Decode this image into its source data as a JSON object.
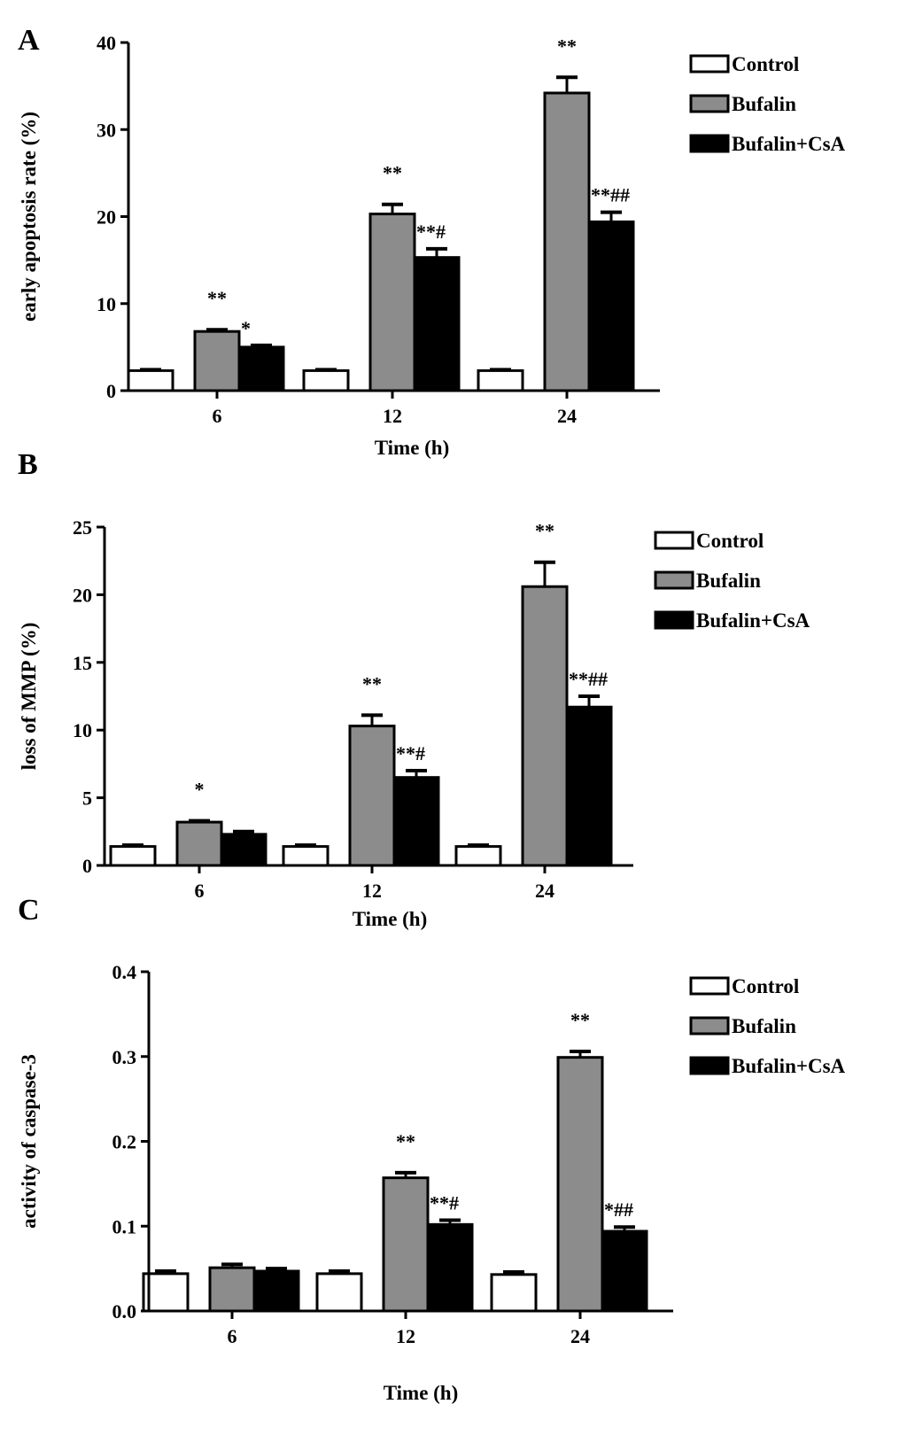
{
  "colors": {
    "Control": "#ffffff",
    "Bufalin": "#8c8c8c",
    "Bufalin+CsA": "#000000"
  },
  "chart_data": [
    {
      "type": "bar",
      "panel_label": "A",
      "title": "",
      "xlabel": "Time (h)",
      "ylabel": "early apoptosis rate (%)",
      "categories": [
        "6",
        "12",
        "24"
      ],
      "ylim": [
        0,
        40
      ],
      "yticks": [
        "0",
        "10",
        "20",
        "30",
        "40"
      ],
      "legend_position": "top-right",
      "series": [
        {
          "name": "Control",
          "values": [
            2.3,
            2.3,
            2.3
          ],
          "errors": [
            0.1,
            0.1,
            0.1
          ],
          "annotations": [
            "",
            "",
            ""
          ]
        },
        {
          "name": "Bufalin",
          "values": [
            6.8,
            20.3,
            34.2
          ],
          "errors": [
            0.2,
            1.1,
            1.8
          ],
          "annotations": [
            "**",
            "**",
            "**"
          ]
        },
        {
          "name": "Bufalin+CsA",
          "values": [
            5.0,
            15.3,
            19.4
          ],
          "errors": [
            0.2,
            1.0,
            1.1
          ],
          "annotations": [
            "*",
            "**#",
            "**##"
          ]
        }
      ]
    },
    {
      "type": "bar",
      "panel_label": "B",
      "title": "",
      "xlabel": "Time (h)",
      "ylabel": "loss of MMP (%)",
      "categories": [
        "6",
        "12",
        "24"
      ],
      "ylim": [
        0,
        25
      ],
      "yticks": [
        "0",
        "5",
        "10",
        "15",
        "20",
        "25"
      ],
      "legend_position": "top-right",
      "series": [
        {
          "name": "Control",
          "values": [
            1.4,
            1.4,
            1.4
          ],
          "errors": [
            0.1,
            0.1,
            0.1
          ],
          "annotations": [
            "",
            "",
            ""
          ]
        },
        {
          "name": "Bufalin",
          "values": [
            3.2,
            10.3,
            20.6
          ],
          "errors": [
            0.1,
            0.8,
            1.8
          ],
          "annotations": [
            "*",
            "**",
            "**"
          ]
        },
        {
          "name": "Bufalin+CsA",
          "values": [
            2.3,
            6.5,
            11.7
          ],
          "errors": [
            0.2,
            0.5,
            0.8
          ],
          "annotations": [
            "",
            "**#",
            "**##"
          ]
        }
      ]
    },
    {
      "type": "bar",
      "panel_label": "C",
      "title": "",
      "xlabel": "Time (h)",
      "ylabel": "activity of caspase-3",
      "categories": [
        "6",
        "12",
        "24"
      ],
      "ylim": [
        0,
        0.4
      ],
      "yticks": [
        "0.0",
        "0.1",
        "0.2",
        "0.3",
        "0.4"
      ],
      "legend_position": "top-right",
      "series": [
        {
          "name": "Control",
          "values": [
            0.044,
            0.044,
            0.043
          ],
          "errors": [
            0.003,
            0.003,
            0.003
          ],
          "annotations": [
            "",
            "",
            ""
          ]
        },
        {
          "name": "Bufalin",
          "values": [
            0.051,
            0.157,
            0.299
          ],
          "errors": [
            0.004,
            0.006,
            0.007
          ],
          "annotations": [
            "",
            "**",
            "**"
          ]
        },
        {
          "name": "Bufalin+CsA",
          "values": [
            0.047,
            0.102,
            0.094
          ],
          "errors": [
            0.003,
            0.005,
            0.005
          ],
          "annotations": [
            "",
            "**#",
            "*##"
          ]
        }
      ]
    }
  ]
}
